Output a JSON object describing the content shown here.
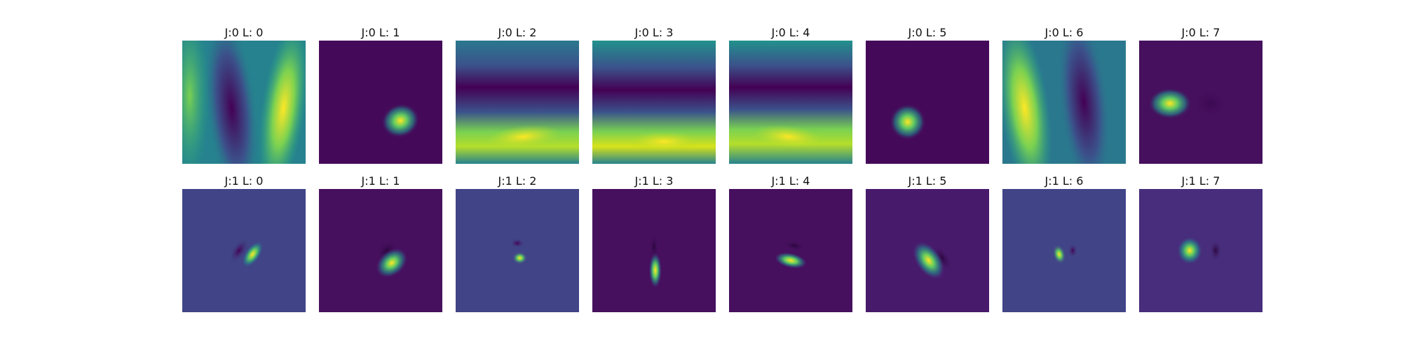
{
  "figure": {
    "colormap": "viridis",
    "rows": [
      {
        "panels": [
          {
            "title": "J:0 L: 0"
          },
          {
            "title": "J:0 L: 1"
          },
          {
            "title": "J:0 L: 2"
          },
          {
            "title": "J:0 L: 3"
          },
          {
            "title": "J:0 L: 4"
          },
          {
            "title": "J:0 L: 5"
          },
          {
            "title": "J:0 L: 6"
          },
          {
            "title": "J:0 L: 7"
          }
        ]
      },
      {
        "panels": [
          {
            "title": "J:1 L: 0"
          },
          {
            "title": "J:1 L: 1"
          },
          {
            "title": "J:1 L: 2"
          },
          {
            "title": "J:1 L: 3"
          },
          {
            "title": "J:1 L: 4"
          },
          {
            "title": "J:1 L: 5"
          },
          {
            "title": "J:1 L: 6"
          },
          {
            "title": "J:1 L: 7"
          }
        ]
      }
    ]
  }
}
